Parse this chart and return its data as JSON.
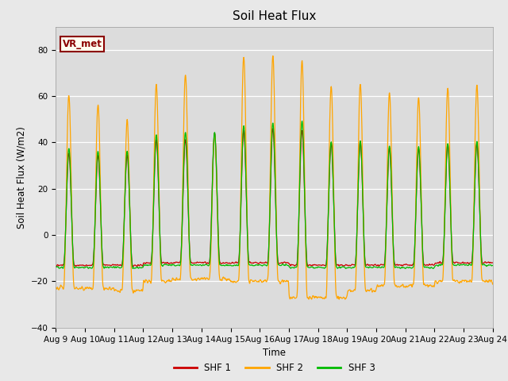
{
  "title": "Soil Heat Flux",
  "ylabel": "Soil Heat Flux (W/m2)",
  "xlabel": "Time",
  "ylim": [
    -40,
    90
  ],
  "yticks": [
    -40,
    -20,
    0,
    20,
    40,
    60,
    80
  ],
  "bg_color": "#dcdcdc",
  "fig_color": "#e8e8e8",
  "legend_entries": [
    "SHF 1",
    "SHF 2",
    "SHF 3"
  ],
  "legend_colors": [
    "#cc0000",
    "#ffa500",
    "#00bb00"
  ],
  "site_label": "VR_met",
  "site_label_color": "#8B0000",
  "site_label_bg": "#fffff0",
  "n_days": 15,
  "pts_per_day": 96,
  "xtick_labels": [
    "Aug 9",
    "Aug 10",
    "Aug 11",
    "Aug 12",
    "Aug 13",
    "Aug 14",
    "Aug 15",
    "Aug 16",
    "Aug 17",
    "Aug 18",
    "Aug 19",
    "Aug 20",
    "Aug 21",
    "Aug 22",
    "Aug 23",
    "Aug 24"
  ],
  "shf2_peaks": [
    61,
    57,
    50,
    66,
    70,
    44,
    78,
    78,
    76,
    65,
    66,
    62,
    60,
    64,
    65
  ],
  "shf1_peaks": [
    36,
    35,
    35,
    42,
    42,
    45,
    46,
    47,
    46,
    40,
    41,
    38,
    38,
    40,
    40
  ],
  "shf3_peaks": [
    38,
    37,
    37,
    44,
    45,
    45,
    48,
    49,
    50,
    41,
    41,
    39,
    39,
    40,
    41
  ],
  "shf2_nights": [
    -23,
    -23,
    -24,
    -20,
    -19,
    -19,
    -20,
    -20,
    -27,
    -27,
    -24,
    -22,
    -22,
    -20,
    -20
  ],
  "shf1_nights": [
    -13,
    -13,
    -13,
    -12,
    -12,
    -12,
    -12,
    -12,
    -13,
    -13,
    -13,
    -13,
    -13,
    -12,
    -12
  ],
  "shf3_nights": [
    -14,
    -14,
    -14,
    -13,
    -13,
    -13,
    -13,
    -13,
    -14,
    -14,
    -14,
    -14,
    -14,
    -13,
    -13
  ]
}
